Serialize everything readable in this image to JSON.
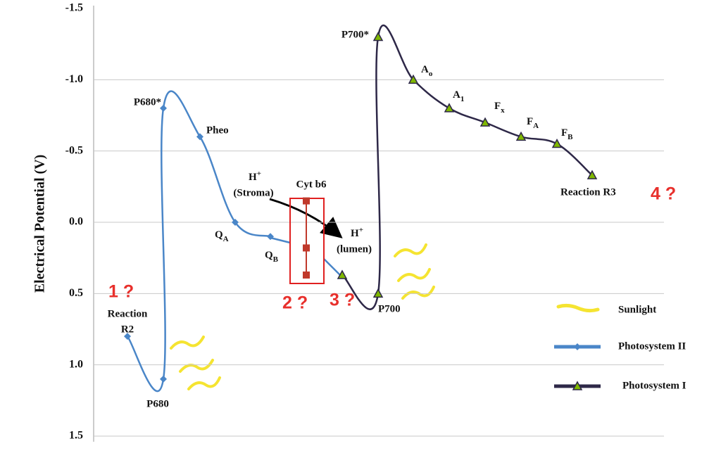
{
  "chart_data": {
    "type": "line",
    "y_label": "Electrical Potential (V)",
    "ylim": [
      -1.5,
      1.5
    ],
    "y_inverted": true,
    "yticks": [
      -1.5,
      {
        "value": -1.0,
        "label": "-1.0"
      },
      -0.5,
      {
        "value": 0,
        "label": "0.0"
      },
      0.5,
      {
        "value": 1.0,
        "label": "1.0"
      },
      1.5
    ],
    "grid": true,
    "series": [
      {
        "name": "Photosystem II",
        "color": "#4a86c8",
        "marker": "diamond",
        "marker_color": "#4a86c8",
        "values": [
          0.8,
          1.1,
          -0.8,
          -0.6,
          0,
          0.1
        ],
        "point_labels": [
          [
            "Reaction",
            "R2"
          ],
          "P680",
          "P680*",
          "Pheo",
          {
            "text": "Q",
            "sub": "A"
          },
          {
            "text": "Q",
            "sub": "B"
          }
        ]
      },
      {
        "name": "Photosystem I",
        "color": "#2e2848",
        "marker": "triangle",
        "marker_color": "#7fb800",
        "values": [
          0.37,
          0.5,
          -1.3,
          -1.0,
          -0.8,
          -0.7,
          -0.6,
          -0.55,
          -0.33
        ],
        "point_labels": [
          null,
          "P700",
          "P700*",
          {
            "text": "A",
            "sub": "o"
          },
          {
            "text": "A",
            "sub": "1"
          },
          {
            "text": "F",
            "sub": "x"
          },
          {
            "text": "F",
            "sub": "A"
          },
          {
            "text": "F",
            "sub": "B"
          },
          "Reaction R3"
        ]
      }
    ],
    "cyt_b6": {
      "name": "Cyt b6",
      "color": "#c0392b",
      "values": [
        -0.15,
        0.18,
        0.37
      ]
    },
    "sunlight_label": "Sunlight",
    "protons": [
      {
        "ion": "H",
        "charge": "+",
        "place": "(Stroma)"
      },
      {
        "ion": "H",
        "charge": "+",
        "place": "(lumen)"
      }
    ],
    "annotations": [
      "1 ?",
      "2 ?",
      "3 ?",
      "4 ?"
    ]
  }
}
